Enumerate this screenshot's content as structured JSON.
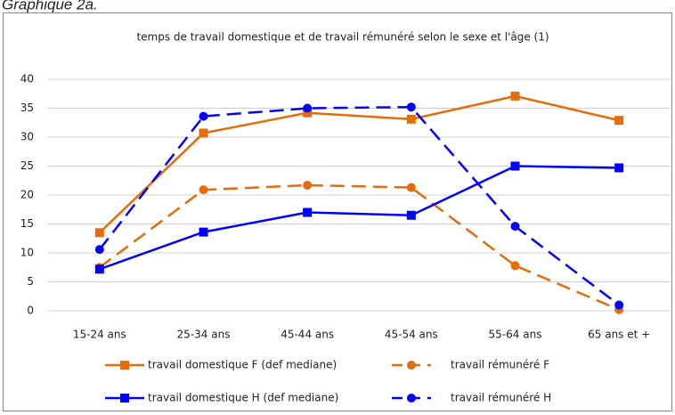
{
  "header": "Graphique 2a.",
  "chart_data": {
    "type": "line",
    "title": "temps de travail domestique et de travail rémunéré selon le sexe et l'âge (1)",
    "categories": [
      "15-24 ans",
      "25-34 ans",
      "45-44 ans",
      "45-54 ans",
      "55-64 ans",
      "65 ans et +"
    ],
    "series": [
      {
        "name": "travail domestique F (def mediane)",
        "color": "#e46c0a",
        "dash": false,
        "marker": "square",
        "values": [
          13.5,
          30.7,
          34.2,
          33.1,
          37.1,
          32.9
        ]
      },
      {
        "name": "travail rémunéré F",
        "color": "#e46c0a",
        "dash": true,
        "marker": "circle",
        "values": [
          7.5,
          20.9,
          21.7,
          21.3,
          7.8,
          0.2
        ]
      },
      {
        "name": "travail domestique H (def mediane)",
        "color": "#0000ff",
        "dash": false,
        "marker": "square",
        "values": [
          7.2,
          13.6,
          17.0,
          16.5,
          25.0,
          24.7
        ]
      },
      {
        "name": "travail rémunéré H",
        "color": "#0000ff",
        "dash": true,
        "marker": "circle",
        "values": [
          10.6,
          33.6,
          35.0,
          35.2,
          14.6,
          1.0
        ]
      }
    ],
    "ylim": [
      0,
      40
    ],
    "yticks": [
      0,
      5,
      10,
      15,
      20,
      25,
      30,
      35,
      40
    ],
    "grid": true,
    "legend": "bottom"
  }
}
